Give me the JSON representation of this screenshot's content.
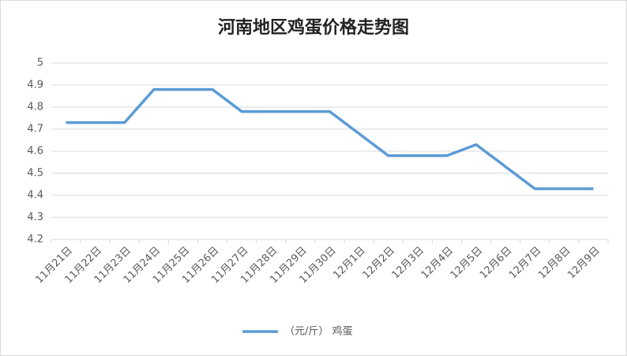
{
  "chart_data": {
    "type": "line",
    "title": "河南地区鸡蛋价格走势图",
    "categories": [
      "11月21日",
      "11月22日",
      "11月23日",
      "11月24日",
      "11月25日",
      "11月26日",
      "11月27日",
      "11月28日",
      "11月29日",
      "11月30日",
      "12月1日",
      "12月2日",
      "12月3日",
      "12月4日",
      "12月5日",
      "12月6日",
      "12月7日",
      "12月8日",
      "12月9日"
    ],
    "series": [
      {
        "name": "（元/斤） 鸡蛋",
        "color": "#5b9bd5",
        "values": [
          4.73,
          4.73,
          4.73,
          4.88,
          4.88,
          4.88,
          4.78,
          4.78,
          4.78,
          4.78,
          4.68,
          4.58,
          4.58,
          4.58,
          4.63,
          4.53,
          4.43,
          4.43,
          4.43
        ]
      }
    ],
    "ylim": [
      4.2,
      5
    ],
    "yticks": [
      4.2,
      4.3,
      4.4,
      4.5,
      4.6,
      4.7,
      4.8,
      4.9,
      5
    ],
    "grid": true,
    "legend": "bottom"
  }
}
